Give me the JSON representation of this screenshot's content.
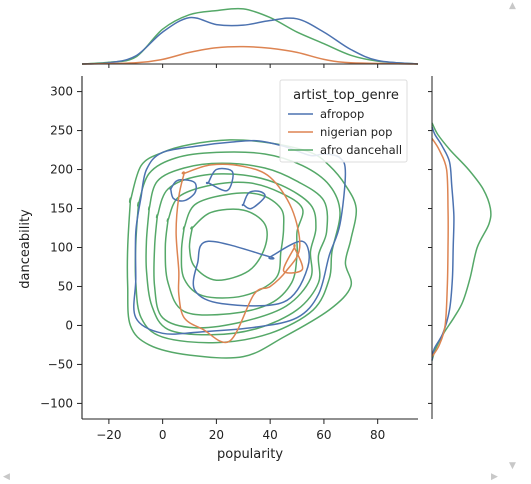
{
  "chart_data": {
    "type": "kde_joint",
    "xlabel": "popularity",
    "ylabel": "danceability",
    "xlim": [
      -30,
      95
    ],
    "ylim": [
      -120,
      320
    ],
    "xticks": [
      "−20",
      "0",
      "20",
      "40",
      "60",
      "80"
    ],
    "xtick_values": [
      -20,
      0,
      20,
      40,
      60,
      80
    ],
    "yticks": [
      "−100",
      "−50",
      "0",
      "50",
      "100",
      "150",
      "200",
      "250",
      "300"
    ],
    "ytick_values": [
      -100,
      -50,
      0,
      50,
      100,
      150,
      200,
      250,
      300
    ],
    "legend": {
      "title": "artist_top_genre",
      "placement": "top-right",
      "entries": [
        "afropop",
        "nigerian pop",
        "afro dancehall"
      ]
    },
    "series": [
      {
        "name": "afropop",
        "color": "#4c72b0",
        "contours": [
          [
            [
              -8,
              165
            ],
            [
              -6,
              200
            ],
            [
              0,
              222
            ],
            [
              15,
              231
            ],
            [
              25,
              235
            ],
            [
              35,
              237
            ],
            [
              45,
              230
            ],
            [
              55,
              218
            ],
            [
              60,
              220
            ],
            [
              66,
              215
            ],
            [
              68,
              195
            ],
            [
              66,
              130
            ],
            [
              62,
              90
            ],
            [
              58,
              40
            ],
            [
              50,
              10
            ],
            [
              35,
              -2
            ],
            [
              15,
              -8
            ],
            [
              0,
              -10
            ],
            [
              -10,
              10
            ],
            [
              -10,
              60
            ],
            [
              -10,
              120
            ],
            [
              -8,
              165
            ]
          ],
          [
            [
              3,
              175
            ],
            [
              5,
              185
            ],
            [
              8,
              187
            ],
            [
              12,
              183
            ],
            [
              12,
              170
            ],
            [
              8,
              160
            ],
            [
              4,
              163
            ],
            [
              3,
              175
            ]
          ],
          [
            [
              17,
              183
            ],
            [
              20,
              200
            ],
            [
              26,
              197
            ],
            [
              24,
              173
            ],
            [
              17,
              183
            ]
          ],
          [
            [
              30,
              155
            ],
            [
              32,
              170
            ],
            [
              36,
              172
            ],
            [
              38,
              165
            ],
            [
              33,
              150
            ],
            [
              30,
              155
            ]
          ],
          [
            [
              40,
              88
            ],
            [
              52,
              108
            ],
            [
              54,
              75
            ],
            [
              45,
              30
            ],
            [
              22,
              28
            ],
            [
              12,
              45
            ],
            [
              13,
              80
            ],
            [
              17,
              108
            ],
            [
              40,
              88
            ]
          ]
        ],
        "marg_x": [
          [
            -30,
            0
          ],
          [
            -20,
            0.02
          ],
          [
            -10,
            0.14
          ],
          [
            0,
            0.55
          ],
          [
            10,
            0.8
          ],
          [
            20,
            0.68
          ],
          [
            30,
            0.67
          ],
          [
            40,
            0.75
          ],
          [
            50,
            0.78
          ],
          [
            60,
            0.55
          ],
          [
            70,
            0.25
          ],
          [
            80,
            0.06
          ],
          [
            95,
            0
          ]
        ],
        "marg_y": [
          [
            -45,
            0
          ],
          [
            -30,
            0.03
          ],
          [
            -10,
            0.15
          ],
          [
            20,
            0.24
          ],
          [
            60,
            0.28
          ],
          [
            100,
            0.29
          ],
          [
            140,
            0.3
          ],
          [
            180,
            0.27
          ],
          [
            210,
            0.24
          ],
          [
            230,
            0.14
          ],
          [
            245,
            0.04
          ],
          [
            255,
            0
          ]
        ]
      },
      {
        "name": "nigerian pop",
        "color": "#dd8452",
        "contours": [
          [
            [
              8,
              195
            ],
            [
              18,
              206
            ],
            [
              30,
              204
            ],
            [
              40,
              190
            ],
            [
              48,
              150
            ],
            [
              51,
              100
            ],
            [
              46,
              70
            ],
            [
              40,
              50
            ],
            [
              34,
              40
            ],
            [
              25,
              -20
            ],
            [
              15,
              -5
            ],
            [
              8,
              10
            ],
            [
              6,
              40
            ],
            [
              6,
              70
            ],
            [
              5,
              120
            ],
            [
              6,
              165
            ],
            [
              8,
              195
            ]
          ],
          [
            [
              49,
              100
            ],
            [
              52,
              72
            ],
            [
              45,
              70
            ],
            [
              49,
              100
            ]
          ]
        ],
        "marg_x": [
          [
            -30,
            0
          ],
          [
            -10,
            0.02
          ],
          [
            0,
            0.08
          ],
          [
            10,
            0.2
          ],
          [
            20,
            0.28
          ],
          [
            30,
            0.3
          ],
          [
            40,
            0.27
          ],
          [
            50,
            0.2
          ],
          [
            60,
            0.08
          ],
          [
            70,
            0.02
          ],
          [
            95,
            0
          ]
        ],
        "marg_y": [
          [
            -40,
            0
          ],
          [
            -25,
            0.1
          ],
          [
            0,
            0.18
          ],
          [
            50,
            0.21
          ],
          [
            100,
            0.22
          ],
          [
            150,
            0.22
          ],
          [
            200,
            0.2
          ],
          [
            225,
            0.1
          ],
          [
            240,
            0
          ]
        ]
      },
      {
        "name": "afro dancehall",
        "color": "#55a868",
        "contours": [
          [
            [
              -12,
              160
            ],
            [
              -8,
              205
            ],
            [
              0,
              222
            ],
            [
              10,
              232
            ],
            [
              25,
              238
            ],
            [
              40,
              234
            ],
            [
              55,
              222
            ],
            [
              62,
              205
            ],
            [
              68,
              180
            ],
            [
              72,
              150
            ],
            [
              70,
              110
            ],
            [
              68,
              80
            ],
            [
              70,
              50
            ],
            [
              62,
              20
            ],
            [
              45,
              -15
            ],
            [
              30,
              -40
            ],
            [
              10,
              -38
            ],
            [
              -5,
              -25
            ],
            [
              -12,
              0
            ],
            [
              -13,
              50
            ],
            [
              -13,
              100
            ],
            [
              -12,
              160
            ]
          ],
          [
            [
              -9,
              155
            ],
            [
              -5,
              195
            ],
            [
              5,
              215
            ],
            [
              20,
              222
            ],
            [
              38,
              220
            ],
            [
              52,
              205
            ],
            [
              62,
              180
            ],
            [
              66,
              145
            ],
            [
              63,
              95
            ],
            [
              62,
              60
            ],
            [
              56,
              20
            ],
            [
              40,
              -10
            ],
            [
              20,
              -22
            ],
            [
              0,
              -15
            ],
            [
              -8,
              10
            ],
            [
              -10,
              55
            ],
            [
              -10,
              105
            ],
            [
              -9,
              155
            ]
          ],
          [
            [
              -5,
              150
            ],
            [
              -2,
              185
            ],
            [
              8,
              202
            ],
            [
              22,
              208
            ],
            [
              38,
              202
            ],
            [
              50,
              185
            ],
            [
              60,
              160
            ],
            [
              61,
              120
            ],
            [
              58,
              90
            ],
            [
              58,
              55
            ],
            [
              50,
              20
            ],
            [
              35,
              -4
            ],
            [
              18,
              -12
            ],
            [
              2,
              -5
            ],
            [
              -4,
              25
            ],
            [
              -6,
              70
            ],
            [
              -6,
              110
            ],
            [
              -5,
              150
            ]
          ],
          [
            [
              -2,
              140
            ],
            [
              2,
              175
            ],
            [
              14,
              192
            ],
            [
              30,
              193
            ],
            [
              44,
              180
            ],
            [
              55,
              155
            ],
            [
              57,
              125
            ],
            [
              55,
              95
            ],
            [
              55,
              60
            ],
            [
              46,
              25
            ],
            [
              30,
              5
            ],
            [
              12,
              -3
            ],
            [
              0,
              10
            ],
            [
              -3,
              50
            ],
            [
              -3,
              100
            ],
            [
              -2,
              140
            ]
          ],
          [
            [
              2,
              135
            ],
            [
              6,
              165
            ],
            [
              18,
              180
            ],
            [
              32,
              183
            ],
            [
              44,
              170
            ],
            [
              52,
              150
            ],
            [
              50,
              120
            ],
            [
              50,
              90
            ],
            [
              48,
              55
            ],
            [
              40,
              28
            ],
            [
              25,
              15
            ],
            [
              8,
              18
            ],
            [
              2,
              55
            ],
            [
              1,
              100
            ],
            [
              2,
              135
            ]
          ],
          [
            [
              8,
              125
            ],
            [
              12,
              155
            ],
            [
              24,
              168
            ],
            [
              36,
              168
            ],
            [
              44,
              150
            ],
            [
              45,
              125
            ],
            [
              44,
              95
            ],
            [
              42,
              60
            ],
            [
              30,
              38
            ],
            [
              15,
              38
            ],
            [
              8,
              60
            ],
            [
              7,
              95
            ],
            [
              8,
              125
            ]
          ],
          [
            [
              11,
              125
            ],
            [
              18,
              145
            ],
            [
              30,
              148
            ],
            [
              38,
              130
            ],
            [
              38,
              100
            ],
            [
              32,
              70
            ],
            [
              20,
              58
            ],
            [
              12,
              75
            ],
            [
              10,
              100
            ],
            [
              11,
              125
            ]
          ]
        ],
        "marg_x": [
          [
            -30,
            0
          ],
          [
            -20,
            0.03
          ],
          [
            -10,
            0.12
          ],
          [
            0,
            0.6
          ],
          [
            10,
            0.85
          ],
          [
            20,
            0.92
          ],
          [
            30,
            0.95
          ],
          [
            40,
            0.8
          ],
          [
            50,
            0.55
          ],
          [
            60,
            0.35
          ],
          [
            70,
            0.15
          ],
          [
            80,
            0.05
          ],
          [
            95,
            0
          ]
        ],
        "marg_y": [
          [
            -45,
            0
          ],
          [
            -30,
            0.05
          ],
          [
            -10,
            0.16
          ],
          [
            10,
            0.3
          ],
          [
            30,
            0.42
          ],
          [
            60,
            0.52
          ],
          [
            100,
            0.62
          ],
          [
            130,
            0.78
          ],
          [
            150,
            0.8
          ],
          [
            175,
            0.7
          ],
          [
            200,
            0.5
          ],
          [
            225,
            0.25
          ],
          [
            245,
            0.08
          ],
          [
            260,
            0
          ]
        ]
      }
    ]
  }
}
